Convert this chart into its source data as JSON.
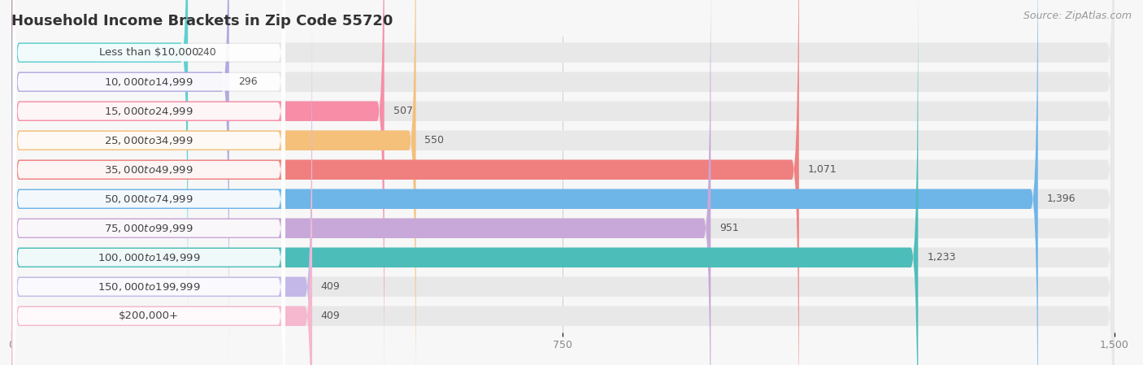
{
  "title": "Household Income Brackets in Zip Code 55720",
  "source": "Source: ZipAtlas.com",
  "categories": [
    "Less than $10,000",
    "$10,000 to $14,999",
    "$15,000 to $24,999",
    "$25,000 to $34,999",
    "$35,000 to $49,999",
    "$50,000 to $74,999",
    "$75,000 to $99,999",
    "$100,000 to $149,999",
    "$150,000 to $199,999",
    "$200,000+"
  ],
  "values": [
    240,
    296,
    507,
    550,
    1071,
    1396,
    951,
    1233,
    409,
    409
  ],
  "bar_colors": [
    "#5ECFCF",
    "#B0AADF",
    "#F78DA7",
    "#F5C07A",
    "#F08080",
    "#6EB5E8",
    "#C8A8D8",
    "#4DBDBA",
    "#C4B8E8",
    "#F5B8CE"
  ],
  "xlim": [
    0,
    1500
  ],
  "xticks": [
    0,
    750,
    1500
  ],
  "background_color": "#f7f7f7",
  "bar_background_color": "#e8e8e8",
  "title_fontsize": 13,
  "label_fontsize": 9.5,
  "value_fontsize": 9,
  "source_fontsize": 9
}
